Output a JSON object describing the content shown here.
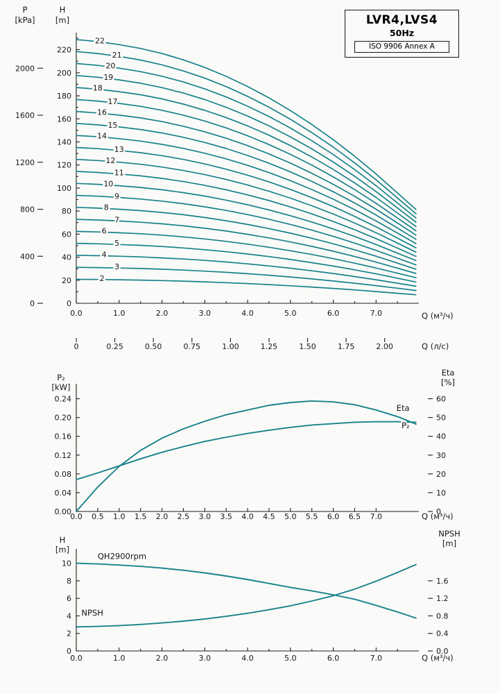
{
  "title_box": {
    "model": "LVR4,LVS4",
    "frequency": "50Hz",
    "standard": "ISO 9906 Annex A"
  },
  "colors": {
    "curve": "#17828b",
    "axis": "#1c1c1c",
    "background": "#fafaf8"
  },
  "chart_data": [
    {
      "id": "qh_multistage",
      "type": "line",
      "x_axis": {
        "label": "Q (м³/ч)",
        "range": [
          0,
          7.95
        ],
        "ticks": [
          0,
          1,
          2,
          3,
          4,
          5,
          6,
          7
        ],
        "tick_labels": [
          "0.0",
          "1.0",
          "2.0",
          "3.0",
          "4.0",
          "5.0",
          "6.0",
          "7.0"
        ],
        "minor_step": 0.5
      },
      "x_axis_secondary": {
        "label": "Q (л/с)",
        "unit_scale": 3.6,
        "ticks": [
          0,
          0.25,
          0.5,
          0.75,
          1,
          1.25,
          1.5,
          1.75,
          2
        ],
        "tick_labels": [
          "0",
          "0.25",
          "0.50",
          "0.75",
          "1.00",
          "1.25",
          "1.50",
          "1.75",
          "2.00"
        ]
      },
      "y_left": {
        "label_lines": [
          "H",
          "[m]"
        ],
        "range": [
          0,
          230
        ],
        "ticks": [
          0,
          20,
          40,
          60,
          80,
          100,
          120,
          140,
          160,
          180,
          200,
          220
        ],
        "tick_labels": [
          "0",
          "20",
          "40",
          "60",
          "80",
          "100",
          "120",
          "140",
          "160",
          "180",
          "200",
          "220"
        ],
        "minor_step": 10
      },
      "y_far_left": {
        "label_lines": [
          "P",
          "[kPa]"
        ],
        "m_per_unit": 0.10197,
        "ticks": [
          0,
          400,
          800,
          1200,
          1600,
          2000
        ],
        "tick_labels": [
          "0",
          "400",
          "800",
          "1200",
          "1600",
          "2000"
        ]
      },
      "unit_curve": {
        "q": [
          0,
          0.5,
          1,
          1.5,
          2,
          2.5,
          3,
          3.5,
          4,
          4.5,
          5,
          5.5,
          6,
          6.5,
          7,
          7.5,
          7.93
        ],
        "h": [
          10.4,
          10.32,
          10.2,
          10.05,
          9.85,
          9.6,
          9.3,
          8.95,
          8.55,
          8.1,
          7.6,
          7.05,
          6.45,
          5.8,
          5.1,
          4.35,
          3.7
        ]
      },
      "stages": [
        {
          "n": 22,
          "label_q": 0.55
        },
        {
          "n": 21,
          "label_q": 0.95
        },
        {
          "n": 20,
          "label_q": 0.8
        },
        {
          "n": 19,
          "label_q": 0.75
        },
        {
          "n": 18,
          "label_q": 0.5
        },
        {
          "n": 17,
          "label_q": 0.85
        },
        {
          "n": 16,
          "label_q": 0.6
        },
        {
          "n": 15,
          "label_q": 0.85
        },
        {
          "n": 14,
          "label_q": 0.6
        },
        {
          "n": 13,
          "label_q": 1.0
        },
        {
          "n": 12,
          "label_q": 0.8
        },
        {
          "n": 11,
          "label_q": 1.0
        },
        {
          "n": 10,
          "label_q": 0.75
        },
        {
          "n": 9,
          "label_q": 0.95
        },
        {
          "n": 8,
          "label_q": 0.7
        },
        {
          "n": 7,
          "label_q": 0.95
        },
        {
          "n": 6,
          "label_q": 0.65
        },
        {
          "n": 5,
          "label_q": 0.95
        },
        {
          "n": 4,
          "label_q": 0.65
        },
        {
          "n": 3,
          "label_q": 0.95
        },
        {
          "n": 2,
          "label_q": 0.6
        }
      ]
    },
    {
      "id": "power_eta",
      "type": "line",
      "x_axis": {
        "label": "Q (м³/ч)",
        "range": [
          0,
          7.95
        ],
        "ticks": [
          0,
          0.5,
          1,
          1.5,
          2,
          2.5,
          3,
          3.5,
          4,
          4.5,
          5,
          5.5,
          6,
          6.5,
          7
        ],
        "tick_labels": [
          "0.0",
          "0.5",
          "1.0",
          "1.5",
          "2.0",
          "2.5",
          "3.0",
          "3.5",
          "4.0",
          "4.5",
          "5.0",
          "5.5",
          "6.0",
          "6.5",
          "7.0"
        ]
      },
      "y_left": {
        "label_lines": [
          "P₂",
          "[kW]"
        ],
        "range": [
          0,
          0.26
        ],
        "ticks": [
          0,
          0.04,
          0.08,
          0.12,
          0.16,
          0.2,
          0.24
        ],
        "tick_labels": [
          "0.00",
          "0.04",
          "0.08",
          "0.12",
          "0.16",
          "0.20",
          "0.24"
        ]
      },
      "y_right": {
        "label_lines": [
          "Eta",
          "[%]"
        ],
        "range": [
          0,
          65
        ],
        "ticks": [
          0,
          10,
          20,
          30,
          40,
          50,
          60
        ],
        "tick_labels": [
          "0",
          "10",
          "20",
          "30",
          "40",
          "50",
          "60"
        ]
      },
      "series": [
        {
          "name": "eta",
          "axis": "right",
          "points": [
            [
              0,
              0
            ],
            [
              0.5,
              13
            ],
            [
              1,
              24
            ],
            [
              1.5,
              32.5
            ],
            [
              2,
              39
            ],
            [
              2.5,
              44
            ],
            [
              3,
              48
            ],
            [
              3.5,
              51.5
            ],
            [
              4,
              54
            ],
            [
              4.5,
              56.5
            ],
            [
              5,
              58
            ],
            [
              5.5,
              58.8
            ],
            [
              6,
              58.3
            ],
            [
              6.5,
              56.8
            ],
            [
              7,
              54
            ],
            [
              7.5,
              50.5
            ],
            [
              7.93,
              46.5
            ]
          ]
        },
        {
          "name": "p2",
          "axis": "left",
          "points": [
            [
              0,
              0.068
            ],
            [
              0.5,
              0.082
            ],
            [
              1,
              0.097
            ],
            [
              1.5,
              0.112
            ],
            [
              2,
              0.126
            ],
            [
              2.5,
              0.138
            ],
            [
              3,
              0.149
            ],
            [
              3.5,
              0.158
            ],
            [
              4,
              0.166
            ],
            [
              4.5,
              0.173
            ],
            [
              5,
              0.179
            ],
            [
              5.5,
              0.184
            ],
            [
              6,
              0.187
            ],
            [
              6.5,
              0.19
            ],
            [
              7,
              0.191
            ],
            [
              7.5,
              0.191
            ],
            [
              7.93,
              0.19
            ]
          ]
        }
      ],
      "annotations": [
        {
          "text": "Eta",
          "x": 7.78,
          "v": 0.214,
          "axis": "left",
          "anchor": "end"
        },
        {
          "text": "P₂",
          "x": 7.78,
          "v": 0.177,
          "axis": "left",
          "anchor": "end"
        }
      ]
    },
    {
      "id": "qh_npsh",
      "type": "line",
      "x_axis": {
        "label": "Q (м³/ч)",
        "range": [
          0,
          7.95
        ],
        "ticks": [
          0,
          1,
          2,
          3,
          4,
          5,
          6,
          7
        ],
        "tick_labels": [
          "0.0",
          "1.0",
          "2.0",
          "3.0",
          "4.0",
          "5.0",
          "6.0",
          "7.0"
        ],
        "minor_step": 0.5
      },
      "y_left": {
        "label_lines": [
          "H",
          "[m]"
        ],
        "range": [
          0,
          11
        ],
        "ticks": [
          0,
          2,
          4,
          6,
          8,
          10
        ],
        "tick_labels": [
          "0",
          "2",
          "4",
          "6",
          "8",
          "10"
        ]
      },
      "y_right": {
        "label_lines": [
          "NPSH",
          "[m]"
        ],
        "range": [
          0,
          2.2
        ],
        "ticks": [
          0,
          0.4,
          0.8,
          1.2,
          1.6
        ],
        "tick_labels": [
          "0.0",
          "0.4",
          "0.8",
          "1.2",
          "1.6"
        ]
      },
      "series": [
        {
          "name": "qh2900",
          "axis": "left",
          "points": [
            [
              0,
              10
            ],
            [
              0.5,
              9.92
            ],
            [
              1,
              9.8
            ],
            [
              1.5,
              9.65
            ],
            [
              2,
              9.45
            ],
            [
              2.5,
              9.2
            ],
            [
              3,
              8.9
            ],
            [
              3.5,
              8.55
            ],
            [
              4,
              8.15
            ],
            [
              4.5,
              7.7
            ],
            [
              5,
              7.25
            ],
            [
              5.5,
              6.85
            ],
            [
              6,
              6.4
            ],
            [
              6.5,
              5.9
            ],
            [
              7,
              5.2
            ],
            [
              7.5,
              4.45
            ],
            [
              7.93,
              3.75
            ]
          ]
        },
        {
          "name": "npsh",
          "axis": "right",
          "points": [
            [
              0,
              0.55
            ],
            [
              0.5,
              0.56
            ],
            [
              1,
              0.58
            ],
            [
              1.5,
              0.605
            ],
            [
              2,
              0.64
            ],
            [
              2.5,
              0.68
            ],
            [
              3,
              0.73
            ],
            [
              3.5,
              0.79
            ],
            [
              4,
              0.86
            ],
            [
              4.5,
              0.94
            ],
            [
              5,
              1.03
            ],
            [
              5.5,
              1.14
            ],
            [
              6,
              1.26
            ],
            [
              6.5,
              1.41
            ],
            [
              7,
              1.59
            ],
            [
              7.5,
              1.79
            ],
            [
              7.93,
              1.97
            ]
          ]
        }
      ],
      "annotations": [
        {
          "text": "QH2900rpm",
          "x": 0.5,
          "v": 10.5,
          "axis": "left",
          "anchor": "start"
        },
        {
          "text": "NPSH",
          "x": 0.12,
          "v": 4.05,
          "axis": "left",
          "anchor": "start"
        }
      ]
    }
  ]
}
